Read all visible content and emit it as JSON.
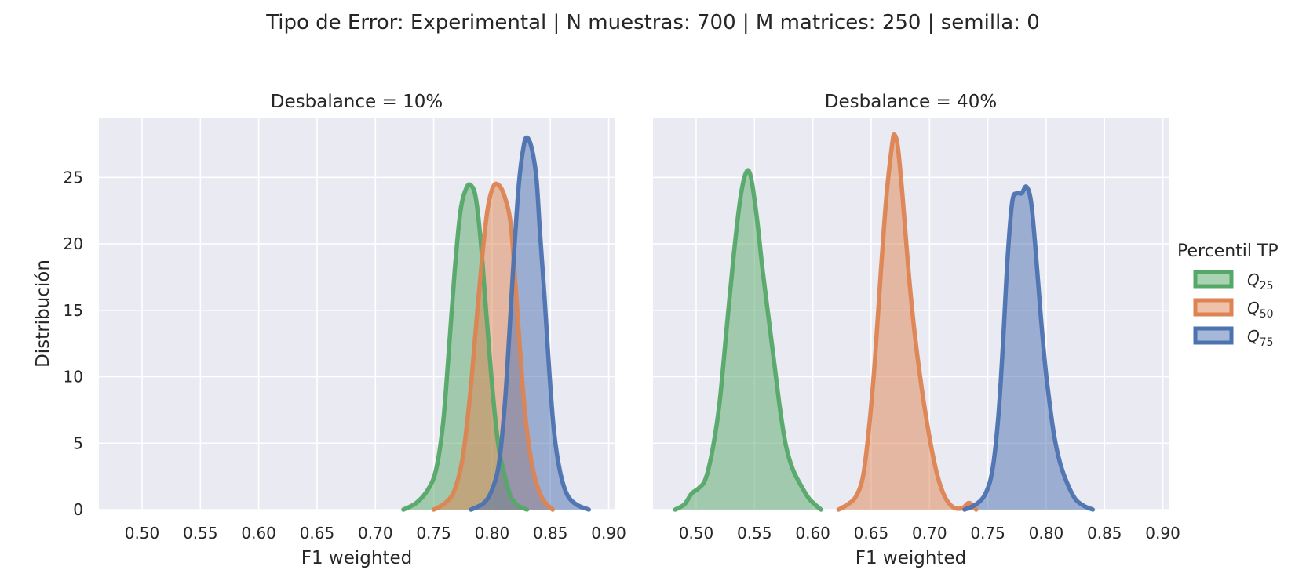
{
  "suptitle": "Tipo de Error: Experimental | N muestras: 700 | M matrices: 250 | semilla: 0",
  "colors": {
    "Q25": "#55a868",
    "Q50": "#dd8452",
    "Q75": "#4c72b0",
    "panel_bg": "#eaeaf2",
    "grid": "#ffffff"
  },
  "legend": {
    "title": "Percentil TP",
    "placement": "right",
    "items": [
      {
        "key": "Q25",
        "base": "Q",
        "sub": "25"
      },
      {
        "key": "Q50",
        "base": "Q",
        "sub": "50"
      },
      {
        "key": "Q75",
        "base": "Q",
        "sub": "75"
      }
    ]
  },
  "chart_data": [
    {
      "type": "area",
      "title": "Desbalance = 10%",
      "xlabel": "F1 weighted",
      "ylabel": "Distribución",
      "xlim": [
        0.463,
        0.905
      ],
      "ylim": [
        0,
        29.5
      ],
      "xticks": [
        0.5,
        0.55,
        0.6,
        0.65,
        0.7,
        0.75,
        0.8,
        0.85,
        0.9
      ],
      "yticks": [
        0,
        5,
        10,
        15,
        20,
        25
      ],
      "grid": true,
      "series": [
        {
          "key": "Q25",
          "points": [
            [
              0.724,
              0
            ],
            [
              0.735,
              0.5
            ],
            [
              0.745,
              1.5
            ],
            [
              0.752,
              3
            ],
            [
              0.758,
              6.5
            ],
            [
              0.763,
              12
            ],
            [
              0.768,
              18
            ],
            [
              0.773,
              22.5
            ],
            [
              0.778,
              24.2
            ],
            [
              0.782,
              24.4
            ],
            [
              0.786,
              23.5
            ],
            [
              0.79,
              20.5
            ],
            [
              0.794,
              16
            ],
            [
              0.798,
              11.5
            ],
            [
              0.802,
              7.5
            ],
            [
              0.806,
              4.5
            ],
            [
              0.811,
              2.5
            ],
            [
              0.816,
              1
            ],
            [
              0.822,
              0.3
            ],
            [
              0.83,
              0
            ]
          ]
        },
        {
          "key": "Q50",
          "points": [
            [
              0.75,
              0
            ],
            [
              0.76,
              0.5
            ],
            [
              0.768,
              1.5
            ],
            [
              0.775,
              4
            ],
            [
              0.781,
              8.5
            ],
            [
              0.786,
              13.5
            ],
            [
              0.791,
              18.5
            ],
            [
              0.796,
              22.5
            ],
            [
              0.801,
              24.3
            ],
            [
              0.806,
              24.4
            ],
            [
              0.811,
              23.5
            ],
            [
              0.816,
              21.5
            ],
            [
              0.82,
              17
            ],
            [
              0.824,
              12
            ],
            [
              0.828,
              7.5
            ],
            [
              0.833,
              4
            ],
            [
              0.838,
              2
            ],
            [
              0.844,
              0.7
            ],
            [
              0.852,
              0
            ]
          ]
        },
        {
          "key": "Q75",
          "points": [
            [
              0.782,
              0
            ],
            [
              0.793,
              0.5
            ],
            [
              0.8,
              1.5
            ],
            [
              0.806,
              3.5
            ],
            [
              0.811,
              8
            ],
            [
              0.815,
              13.5
            ],
            [
              0.819,
              19.5
            ],
            [
              0.823,
              24.5
            ],
            [
              0.827,
              27.3
            ],
            [
              0.83,
              28
            ],
            [
              0.834,
              27.2
            ],
            [
              0.838,
              25
            ],
            [
              0.841,
              21
            ],
            [
              0.845,
              16
            ],
            [
              0.849,
              10.5
            ],
            [
              0.853,
              6
            ],
            [
              0.858,
              3
            ],
            [
              0.864,
              1.2
            ],
            [
              0.872,
              0.4
            ],
            [
              0.883,
              0
            ]
          ]
        }
      ]
    },
    {
      "type": "area",
      "title": "Desbalance = 40%",
      "xlabel": "F1 weighted",
      "ylabel": "",
      "xlim": [
        0.463,
        0.905
      ],
      "ylim": [
        0,
        29.5
      ],
      "xticks": [
        0.5,
        0.55,
        0.6,
        0.65,
        0.7,
        0.75,
        0.8,
        0.85,
        0.9
      ],
      "yticks": [
        0,
        5,
        10,
        15,
        20,
        25
      ],
      "grid": true,
      "series": [
        {
          "key": "Q25",
          "points": [
            [
              0.482,
              0
            ],
            [
              0.49,
              0.4
            ],
            [
              0.496,
              1.2
            ],
            [
              0.502,
              1.6
            ],
            [
              0.508,
              2.3
            ],
            [
              0.514,
              4.5
            ],
            [
              0.52,
              8
            ],
            [
              0.526,
              13.5
            ],
            [
              0.532,
              19
            ],
            [
              0.538,
              23.5
            ],
            [
              0.543,
              25.4
            ],
            [
              0.547,
              25
            ],
            [
              0.552,
              22
            ],
            [
              0.557,
              18
            ],
            [
              0.562,
              14.5
            ],
            [
              0.567,
              11
            ],
            [
              0.572,
              7.5
            ],
            [
              0.577,
              4.8
            ],
            [
              0.583,
              3
            ],
            [
              0.59,
              1.8
            ],
            [
              0.597,
              0.8
            ],
            [
              0.607,
              0
            ]
          ]
        },
        {
          "key": "Q50",
          "points": [
            [
              0.622,
              0
            ],
            [
              0.63,
              0.4
            ],
            [
              0.637,
              1
            ],
            [
              0.643,
              2.5
            ],
            [
              0.648,
              6
            ],
            [
              0.653,
              11
            ],
            [
              0.658,
              17.5
            ],
            [
              0.663,
              23.5
            ],
            [
              0.668,
              27.5
            ],
            [
              0.67,
              28.2
            ],
            [
              0.673,
              27.2
            ],
            [
              0.677,
              23.5
            ],
            [
              0.682,
              18
            ],
            [
              0.687,
              13.5
            ],
            [
              0.692,
              10
            ],
            [
              0.697,
              7
            ],
            [
              0.702,
              4.5
            ],
            [
              0.707,
              2.5
            ],
            [
              0.713,
              1
            ],
            [
              0.72,
              0.2
            ],
            [
              0.728,
              0.1
            ],
            [
              0.734,
              0.5
            ],
            [
              0.74,
              0
            ]
          ]
        },
        {
          "key": "Q75",
          "points": [
            [
              0.73,
              0
            ],
            [
              0.74,
              0.4
            ],
            [
              0.748,
              1.2
            ],
            [
              0.754,
              3
            ],
            [
              0.759,
              7
            ],
            [
              0.763,
              12.5
            ],
            [
              0.767,
              19
            ],
            [
              0.771,
              23.2
            ],
            [
              0.775,
              23.8
            ],
            [
              0.779,
              23.8
            ],
            [
              0.783,
              24.3
            ],
            [
              0.787,
              23.2
            ],
            [
              0.791,
              19.5
            ],
            [
              0.795,
              15
            ],
            [
              0.799,
              11
            ],
            [
              0.803,
              8
            ],
            [
              0.807,
              5.5
            ],
            [
              0.812,
              3.5
            ],
            [
              0.818,
              2
            ],
            [
              0.825,
              0.8
            ],
            [
              0.832,
              0.3
            ],
            [
              0.84,
              0
            ]
          ]
        }
      ]
    }
  ]
}
